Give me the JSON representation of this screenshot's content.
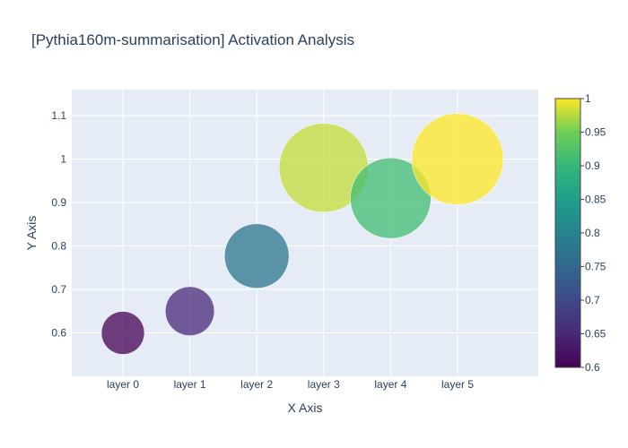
{
  "chart_data": {
    "type": "scatter",
    "title": "[Pythia160m-summarisation] Activation Analysis",
    "xlabel": "X Axis",
    "ylabel": "Y Axis",
    "categories": [
      "layer 0",
      "layer 1",
      "layer 2",
      "layer 3",
      "layer 4",
      "layer 5"
    ],
    "y": [
      0.6,
      0.65,
      0.777,
      0.98,
      0.91,
      1.0
    ],
    "color": [
      0.6,
      0.65,
      0.777,
      0.98,
      0.91,
      1.0
    ],
    "size": [
      0.6,
      0.65,
      0.777,
      0.98,
      0.91,
      1.0
    ],
    "ylim": [
      0.5,
      1.16
    ],
    "yticks": [
      0.6,
      0.7,
      0.8,
      0.9,
      1,
      1.1
    ],
    "ytick_labels": [
      "0.6",
      "0.7",
      "0.8",
      "0.9",
      "1",
      "1.1"
    ],
    "colorscale": "viridis",
    "colorbar": {
      "min": 0.6,
      "max": 1.0,
      "ticks": [
        0.6,
        0.65,
        0.7,
        0.75,
        0.8,
        0.85,
        0.9,
        0.95,
        1
      ],
      "tick_labels": [
        "0.6",
        "0.65",
        "0.7",
        "0.75",
        "0.8",
        "0.85",
        "0.9",
        "0.95",
        "1"
      ]
    },
    "grid": true
  }
}
